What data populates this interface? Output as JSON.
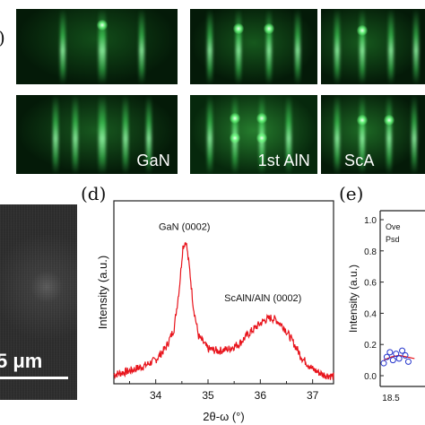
{
  "figure": {
    "panel_c_letter_fragment": ")",
    "panel_d_letter": "(d)",
    "panel_e_letter": "(e)"
  },
  "rheed_panels": {
    "labels": [
      "GaN",
      "1st AlN",
      "ScA"
    ]
  },
  "sem": {
    "scale_label": "5 μm"
  },
  "chart_data": [
    {
      "type": "line",
      "title": "",
      "xlabel": "2θ-ω (°)",
      "ylabel": "Intensity (a.u.)",
      "xlim": [
        33.2,
        37.4
      ],
      "ylim": [
        0,
        1
      ],
      "x_ticks": [
        "34",
        "35",
        "36",
        "37"
      ],
      "grid": false,
      "series": [
        {
          "color": "#e8141c",
          "x": [
            33.2,
            33.5,
            33.8,
            34.0,
            34.2,
            34.35,
            34.45,
            34.52,
            34.58,
            34.65,
            34.72,
            34.82,
            35.0,
            35.2,
            35.4,
            35.6,
            35.8,
            36.0,
            36.1,
            36.2,
            36.3,
            36.45,
            36.6,
            36.8,
            37.0,
            37.2,
            37.4
          ],
          "y": [
            0.05,
            0.07,
            0.1,
            0.13,
            0.2,
            0.3,
            0.52,
            0.75,
            0.78,
            0.62,
            0.42,
            0.26,
            0.19,
            0.18,
            0.19,
            0.22,
            0.28,
            0.33,
            0.35,
            0.36,
            0.35,
            0.31,
            0.24,
            0.14,
            0.08,
            0.05,
            0.04
          ]
        }
      ],
      "annotations": [
        {
          "text": "GaN (0002)",
          "x": 34.55,
          "y": 0.84
        },
        {
          "text": "ScAlN/AlN (0002)",
          "x": 36.05,
          "y": 0.45
        }
      ]
    },
    {
      "type": "scatter",
      "title": "",
      "xlabel": "",
      "ylabel": "Intensity (a.u.)",
      "xlim": [
        18.3,
        19.5
      ],
      "ylim": [
        0,
        1.1
      ],
      "y_ticks": [
        "0.0",
        "0.2",
        "0.4",
        "0.6",
        "0.8",
        "1.0"
      ],
      "x_ticks": [
        "18.5"
      ],
      "legend": [
        "Ove",
        "Psd"
      ],
      "series": [
        {
          "marker": "open-circle",
          "color": "#2233cc",
          "x": [
            18.3,
            18.34,
            18.38,
            18.42,
            18.46,
            18.5,
            18.54,
            18.58,
            18.62
          ],
          "y": [
            0.08,
            0.12,
            0.15,
            0.1,
            0.14,
            0.11,
            0.16,
            0.13,
            0.09
          ]
        },
        {
          "type": "line",
          "color": "#e8141c",
          "x": [
            18.3,
            18.4,
            18.5,
            18.6,
            18.7
          ],
          "y": [
            0.1,
            0.12,
            0.13,
            0.12,
            0.11
          ]
        }
      ]
    }
  ]
}
